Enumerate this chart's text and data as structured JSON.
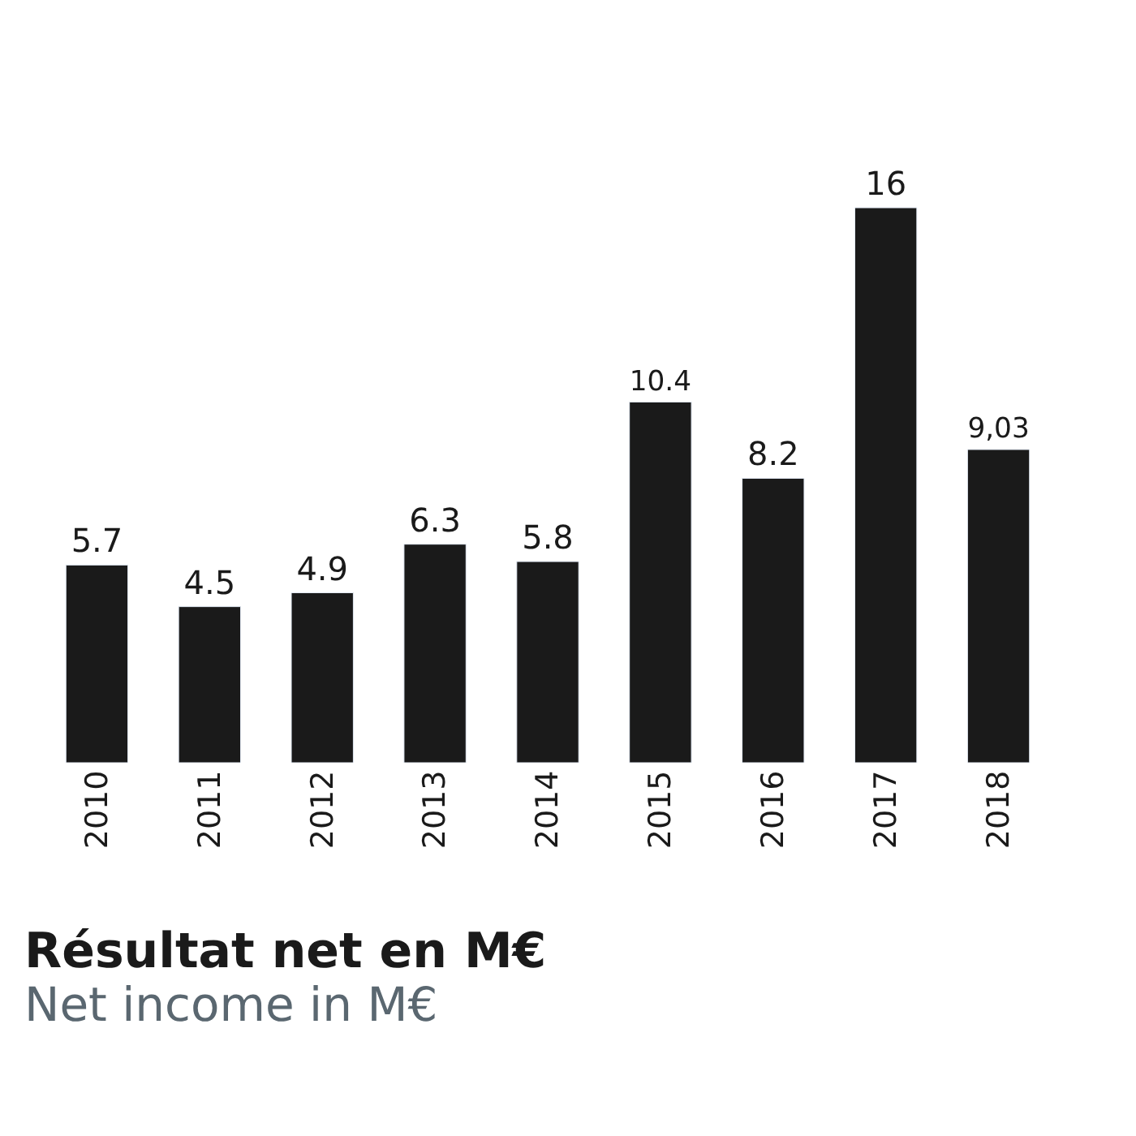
{
  "chart_data": {
    "type": "bar",
    "title": "Résultat net en M€",
    "subtitle": "Net income in M€",
    "categories": [
      "2010",
      "2011",
      "2012",
      "2013",
      "2014",
      "2015",
      "2016",
      "2017",
      "2018"
    ],
    "values": [
      5.7,
      4.5,
      4.9,
      6.3,
      5.8,
      10.4,
      8.2,
      16,
      9.03
    ],
    "value_labels": [
      "5.7",
      "4.5",
      "4.9",
      "6.3",
      "5.8",
      "10.4",
      "8.2",
      "16",
      "9,03"
    ],
    "color": "#1a1a1a"
  }
}
